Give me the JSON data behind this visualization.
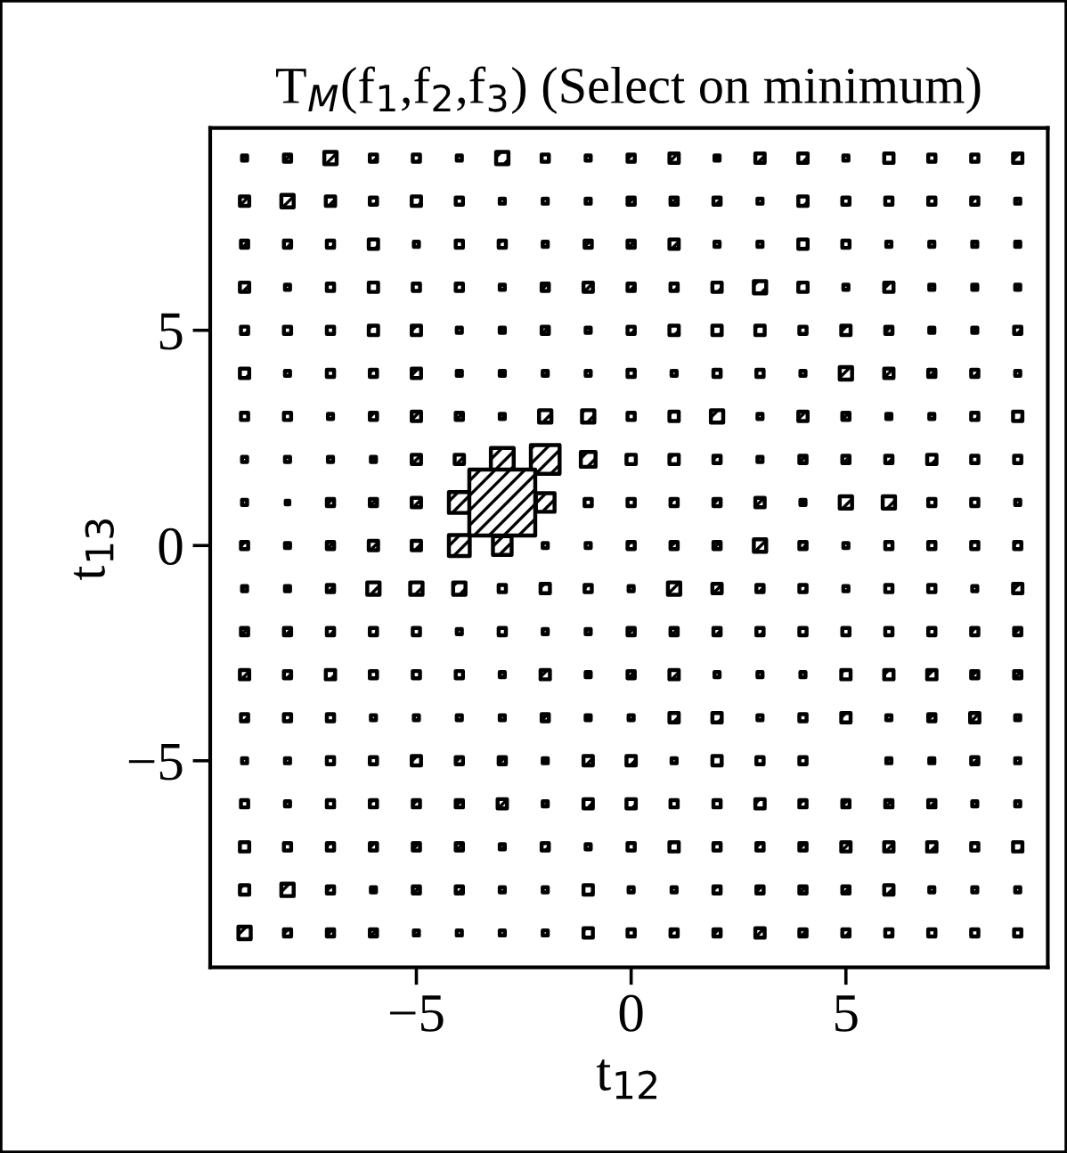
{
  "chart_data": {
    "type": "bubble",
    "title": "T$_{M}$(f$_{1}$,f$_{2}$,f$_{3}$) (Select on minimum)",
    "xlabel": "t$_{12}$",
    "ylabel": "t$_{13}$",
    "xlim": [
      -9.8,
      9.7
    ],
    "ylim": [
      -9.8,
      9.7
    ],
    "xticks": [
      {
        "value": -5,
        "label": "−5"
      },
      0,
      5
    ],
    "yticks": [
      {
        "value": -5,
        "label": "−5"
      },
      0,
      5
    ],
    "tick_labels": true,
    "grid": false,
    "legend": false,
    "marker": "square",
    "series": [
      {
        "color": "#000000",
        "x": [
          -9,
          -8,
          -7,
          -6,
          -5,
          -4,
          -3,
          -2,
          -1,
          0,
          1,
          2,
          3,
          4,
          5,
          6,
          7,
          8,
          9,
          -9,
          -8,
          -7,
          -6,
          -5,
          -4,
          -3,
          -2,
          -1,
          0,
          1,
          2,
          3,
          4,
          5,
          6,
          7,
          8,
          9,
          -9,
          -8,
          -7,
          -6,
          -5,
          -4,
          -3,
          -2,
          -1,
          0,
          1,
          2,
          3,
          4,
          5,
          6,
          7,
          8,
          9,
          -9,
          -8,
          -7,
          -6,
          -5,
          -4,
          -3,
          -2,
          -1,
          0,
          1,
          2,
          3,
          4,
          5,
          6,
          7,
          8,
          9,
          -9,
          -8,
          -7,
          -6,
          -5,
          -4,
          -3,
          -2,
          -1,
          0,
          1,
          2,
          3,
          4,
          5,
          6,
          7,
          8,
          9,
          -9,
          -8,
          -7,
          -6,
          -5,
          -4,
          -3,
          -2,
          -1,
          0,
          1,
          2,
          3,
          4,
          5,
          6,
          7,
          8,
          9,
          -9,
          -8,
          -7,
          -6,
          -5,
          -4,
          -3,
          -2,
          -1,
          0,
          1,
          2,
          3,
          4,
          5,
          6,
          7,
          8,
          9,
          -9,
          -8,
          -7,
          -6,
          -5,
          -4,
          -3,
          -2,
          -1,
          0,
          1,
          2,
          3,
          4,
          5,
          6,
          7,
          8,
          9,
          -9,
          -8,
          -7,
          -6,
          -5,
          -4,
          -3,
          -2,
          -1,
          0,
          1,
          2,
          3,
          4,
          5,
          6,
          7,
          8,
          9,
          -9,
          -8,
          -7,
          -6,
          -5,
          -4,
          -3,
          -2,
          -1,
          0,
          1,
          2,
          3,
          4,
          5,
          6,
          7,
          8,
          9,
          -9,
          -8,
          -7,
          -6,
          -5,
          -4,
          -3,
          -2,
          -1,
          0,
          1,
          2,
          3,
          4,
          5,
          6,
          7,
          8,
          9,
          -9,
          -8,
          -7,
          -6,
          -5,
          -4,
          -3,
          -2,
          -1,
          0,
          1,
          2,
          3,
          4,
          5,
          6,
          7,
          8,
          9,
          -9,
          -8,
          -7,
          -6,
          -5,
          -4,
          -3,
          -2,
          -1,
          0,
          1,
          2,
          3,
          4,
          5,
          6,
          7,
          8,
          9,
          -9,
          -8,
          -7,
          -6,
          -5,
          -4,
          -3,
          -2,
          -1,
          0,
          1,
          2,
          3,
          4,
          5,
          6,
          7,
          8,
          9,
          -9,
          -8,
          -7,
          -6,
          -5,
          -4,
          -3,
          -2,
          -1,
          0,
          1,
          2,
          3,
          4,
          5,
          6,
          7,
          8,
          9,
          -9,
          -8,
          -7,
          -6,
          -5,
          -4,
          -3,
          -2,
          -1,
          0,
          1,
          2,
          3,
          4,
          5,
          6,
          7,
          8,
          9,
          -9,
          -8,
          -7,
          -6,
          -5,
          -4,
          -3,
          -2,
          -1,
          0,
          1,
          2,
          3,
          4,
          5,
          6,
          7,
          8,
          9,
          -9,
          -8,
          -7,
          -6,
          -5,
          -4,
          -3,
          -2,
          -1,
          0,
          1,
          2,
          3,
          4,
          5,
          6,
          7,
          8,
          9,
          -9,
          -8,
          -7,
          -6,
          -5,
          -4,
          -3,
          -2,
          -1,
          0,
          1,
          2,
          3,
          4,
          5,
          6,
          7,
          8,
          9
        ],
        "values": [
          9,
          9,
          9,
          9,
          9,
          9,
          9,
          9,
          9,
          9,
          9,
          9,
          9,
          9,
          9,
          9,
          9,
          9,
          9,
          8,
          8,
          8,
          8,
          8,
          8,
          8,
          8,
          8,
          8,
          8,
          8,
          8,
          8,
          8,
          8,
          8,
          8,
          8,
          7,
          7,
          7,
          7,
          7,
          7,
          7,
          7,
          7,
          7,
          7,
          7,
          7,
          7,
          7,
          7,
          7,
          7,
          7,
          6,
          6,
          6,
          6,
          6,
          6,
          6,
          6,
          6,
          6,
          6,
          6,
          6,
          6,
          6,
          6,
          6,
          6,
          6,
          5,
          5,
          5,
          5,
          5,
          5,
          5,
          5,
          5,
          5,
          5,
          5,
          5,
          5,
          5,
          5,
          5,
          5,
          5,
          4,
          4,
          4,
          4,
          4,
          4,
          4,
          4,
          4,
          4,
          4,
          4,
          4,
          4,
          4,
          4,
          4,
          4,
          4,
          3,
          3,
          3,
          3,
          3,
          3,
          3,
          3,
          3,
          3,
          3,
          3,
          3,
          3,
          3,
          3,
          3,
          3,
          3,
          2,
          2,
          2,
          2,
          2,
          2,
          2,
          2,
          2,
          2,
          2,
          2,
          2,
          2,
          2,
          2,
          2,
          2,
          2,
          1,
          1,
          1,
          1,
          1,
          1,
          1,
          1,
          1,
          1,
          1,
          1,
          1,
          1,
          1,
          1,
          1,
          1,
          1,
          0,
          0,
          0,
          0,
          0,
          0,
          0,
          0,
          0,
          0,
          0,
          0,
          0,
          0,
          0,
          0,
          0,
          0,
          0,
          -1,
          -1,
          -1,
          -1,
          -1,
          -1,
          -1,
          -1,
          -1,
          -1,
          -1,
          -1,
          -1,
          -1,
          -1,
          -1,
          -1,
          -1,
          -1,
          -2,
          -2,
          -2,
          -2,
          -2,
          -2,
          -2,
          -2,
          -2,
          -2,
          -2,
          -2,
          -2,
          -2,
          -2,
          -2,
          -2,
          -2,
          -2,
          -3,
          -3,
          -3,
          -3,
          -3,
          -3,
          -3,
          -3,
          -3,
          -3,
          -3,
          -3,
          -3,
          -3,
          -3,
          -3,
          -3,
          -3,
          -3,
          -4,
          -4,
          -4,
          -4,
          -4,
          -4,
          -4,
          -4,
          -4,
          -4,
          -4,
          -4,
          -4,
          -4,
          -4,
          -4,
          -4,
          -4,
          -4,
          -5,
          -5,
          -5,
          -5,
          -5,
          -5,
          -5,
          -5,
          -5,
          -5,
          -5,
          -5,
          -5,
          -5,
          null,
          -5,
          -5,
          -5,
          -5,
          -6,
          -6,
          -6,
          -6,
          -6,
          -6,
          -6,
          -6,
          -6,
          -6,
          -6,
          -6,
          -6,
          -6,
          -6,
          -6,
          -6,
          -6,
          -6,
          -7,
          -7,
          -7,
          -7,
          -7,
          -7,
          -7,
          -7,
          -7,
          -7,
          -7,
          -7,
          -7,
          -7,
          -7,
          -7,
          -7,
          -7,
          -7,
          -8,
          -8,
          -8,
          -8,
          -8,
          -8,
          -8,
          -8,
          -8,
          -8,
          -8,
          -8,
          -8,
          -8,
          -8,
          -8,
          -8,
          -8,
          -8,
          -9,
          -9,
          -9,
          -9,
          -9,
          -9,
          -9,
          -9,
          -9,
          -9,
          -9,
          -9,
          -9,
          -9,
          -9,
          -9,
          -9,
          -9,
          -9
        ],
        "sizes": [
          0.006,
          0.012,
          0.035,
          0.012,
          0.012,
          0.006,
          0.035,
          0.012,
          0.006,
          0.012,
          0.02,
          0.006,
          0.02,
          0.02,
          0.006,
          0.02,
          0.012,
          0.012,
          0.02,
          0.02,
          0.035,
          0.02,
          0.012,
          0.02,
          0.012,
          0.006,
          0.006,
          0.006,
          0.012,
          0.012,
          0.012,
          0.006,
          0.02,
          0.012,
          0.012,
          0.012,
          0.012,
          0.006,
          0.012,
          0.012,
          0.012,
          0.02,
          0.006,
          0.012,
          0.012,
          0.006,
          0.012,
          0.012,
          0.02,
          0.006,
          0.006,
          0.02,
          0.012,
          0.006,
          0.006,
          0.006,
          0.006,
          0.02,
          0.006,
          0.012,
          0.02,
          0.012,
          0.012,
          0.006,
          0.012,
          0.02,
          0.012,
          0.012,
          0.02,
          0.035,
          0.02,
          0.006,
          0.02,
          0.006,
          0.006,
          0.006,
          0.012,
          0.012,
          0.012,
          0.02,
          0.02,
          0.006,
          0.006,
          0.012,
          0.006,
          0.012,
          0.02,
          0.02,
          0.02,
          0.012,
          0.02,
          0.012,
          0.006,
          0.006,
          0.012,
          0.02,
          0.006,
          0.012,
          0.012,
          0.02,
          0.006,
          0.006,
          0.006,
          0.006,
          0.012,
          0.006,
          0.012,
          0.012,
          0.006,
          0.035,
          0.02,
          0.012,
          0.012,
          0.006,
          0.012,
          0.012,
          0.006,
          0.012,
          0.02,
          0.012,
          0.006,
          0.035,
          0.035,
          0.012,
          0.02,
          0.035,
          0.006,
          0.02,
          0.012,
          0.006,
          0.006,
          0.012,
          0.02,
          0.006,
          0.006,
          0.006,
          0.006,
          0.02,
          0.02,
          0.12,
          0.19,
          0.05,
          0.02,
          0.02,
          0.012,
          0.006,
          0.012,
          0.012,
          0.012,
          0.02,
          0.012,
          0.012,
          0.006,
          0.003,
          0.012,
          0.012,
          0.02,
          0.1,
          1,
          0.08,
          0.012,
          0.012,
          0.012,
          0.012,
          0.02,
          0.006,
          0.035,
          0.035,
          0.012,
          0.012,
          0.006,
          0.012,
          0.006,
          0.012,
          0.02,
          0.02,
          0.1,
          0.08,
          0.006,
          0.006,
          0.012,
          0.012,
          0.012,
          0.035,
          0.012,
          0.006,
          0.012,
          0.012,
          0.012,
          0.012,
          0.006,
          0.006,
          0.012,
          0.035,
          0.035,
          0.035,
          0.012,
          0.02,
          0.012,
          0.006,
          0.035,
          0.02,
          0.012,
          0.012,
          0.006,
          0.012,
          0.012,
          0.006,
          0.02,
          0.012,
          0.012,
          0.012,
          0.012,
          0.012,
          0.006,
          0.012,
          0.006,
          0.006,
          0.012,
          0.012,
          0.012,
          0.012,
          0.012,
          0.012,
          0.012,
          0.012,
          0.012,
          0.012,
          0.02,
          0.012,
          0.02,
          0.012,
          0.012,
          0.012,
          0.006,
          0.02,
          0.006,
          0.012,
          0.02,
          0.006,
          0.006,
          0.006,
          0.02,
          0.02,
          0.02,
          0.012,
          0.012,
          0.012,
          0.012,
          0.012,
          0.006,
          0.006,
          0.006,
          0.006,
          0.012,
          0.006,
          0.006,
          0.02,
          0.02,
          0.006,
          0.012,
          0.02,
          0.006,
          0.012,
          0.02,
          0.006,
          0.006,
          0.006,
          0.012,
          0.012,
          0.02,
          0.012,
          0.012,
          0.006,
          0.02,
          0.02,
          0.006,
          0.02,
          0.012,
          0.012,
          null,
          0.006,
          0.006,
          0.012,
          0.006,
          0.012,
          0.006,
          0.012,
          0.012,
          0.012,
          0.012,
          0.02,
          0.006,
          0.02,
          0.02,
          0.012,
          0.012,
          0.02,
          0.012,
          0.012,
          0.012,
          0.012,
          0.006,
          0.006,
          0.02,
          0.012,
          0.012,
          0.012,
          0.012,
          0.012,
          0.006,
          0.012,
          0.006,
          0.012,
          0.02,
          0.012,
          0.012,
          0.012,
          0.02,
          0.02,
          0.02,
          0.012,
          0.02,
          0.02,
          0.035,
          0.012,
          0.006,
          0.012,
          0.012,
          0.006,
          0.006,
          0.02,
          0.006,
          0.006,
          0.012,
          0.012,
          0.012,
          0.012,
          0.02,
          0.006,
          0.006,
          0.006,
          0.035,
          0.012,
          0.012,
          0.012,
          0.006,
          0.006,
          0.006,
          0.006,
          0.02,
          0.012,
          0.012,
          0.012,
          0.02,
          0.012,
          0.012,
          0.012,
          0.012,
          0.012,
          0.012
        ]
      }
    ]
  }
}
